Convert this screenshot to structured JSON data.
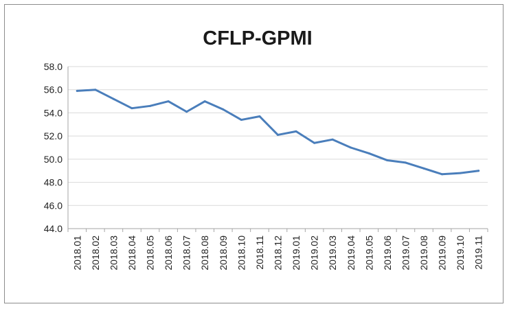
{
  "chart_data": {
    "type": "line",
    "title": "CFLP-GPMI",
    "xlabel": "",
    "ylabel": "",
    "ylim": [
      44.0,
      58.0
    ],
    "yticks": [
      "44.0",
      "46.0",
      "48.0",
      "50.0",
      "52.0",
      "54.0",
      "56.0",
      "58.0"
    ],
    "grid": true,
    "legend": "none",
    "categories": [
      "2018.01",
      "2018.02",
      "2018.03",
      "2018.04",
      "2018.05",
      "2018.06",
      "2018.07",
      "2018.08",
      "2018.09",
      "2018.10",
      "2018.11",
      "2018.12",
      "2019.01",
      "2019.02",
      "2019.03",
      "2019.04",
      "2019.05",
      "2019.06",
      "2019.07",
      "2019.08",
      "2019.09",
      "2019.10",
      "2019.11"
    ],
    "series": [
      {
        "color": "#4a7ebb",
        "values": [
          55.9,
          56.0,
          55.2,
          54.4,
          54.6,
          55.0,
          54.1,
          55.0,
          54.3,
          53.4,
          53.7,
          52.1,
          52.4,
          51.4,
          51.7,
          51.0,
          50.5,
          49.9,
          49.7,
          49.2,
          48.7,
          48.8,
          49.0
        ]
      }
    ],
    "colors": {
      "gridline": "#d9d9d9",
      "axis": "#a6a6a6"
    }
  }
}
